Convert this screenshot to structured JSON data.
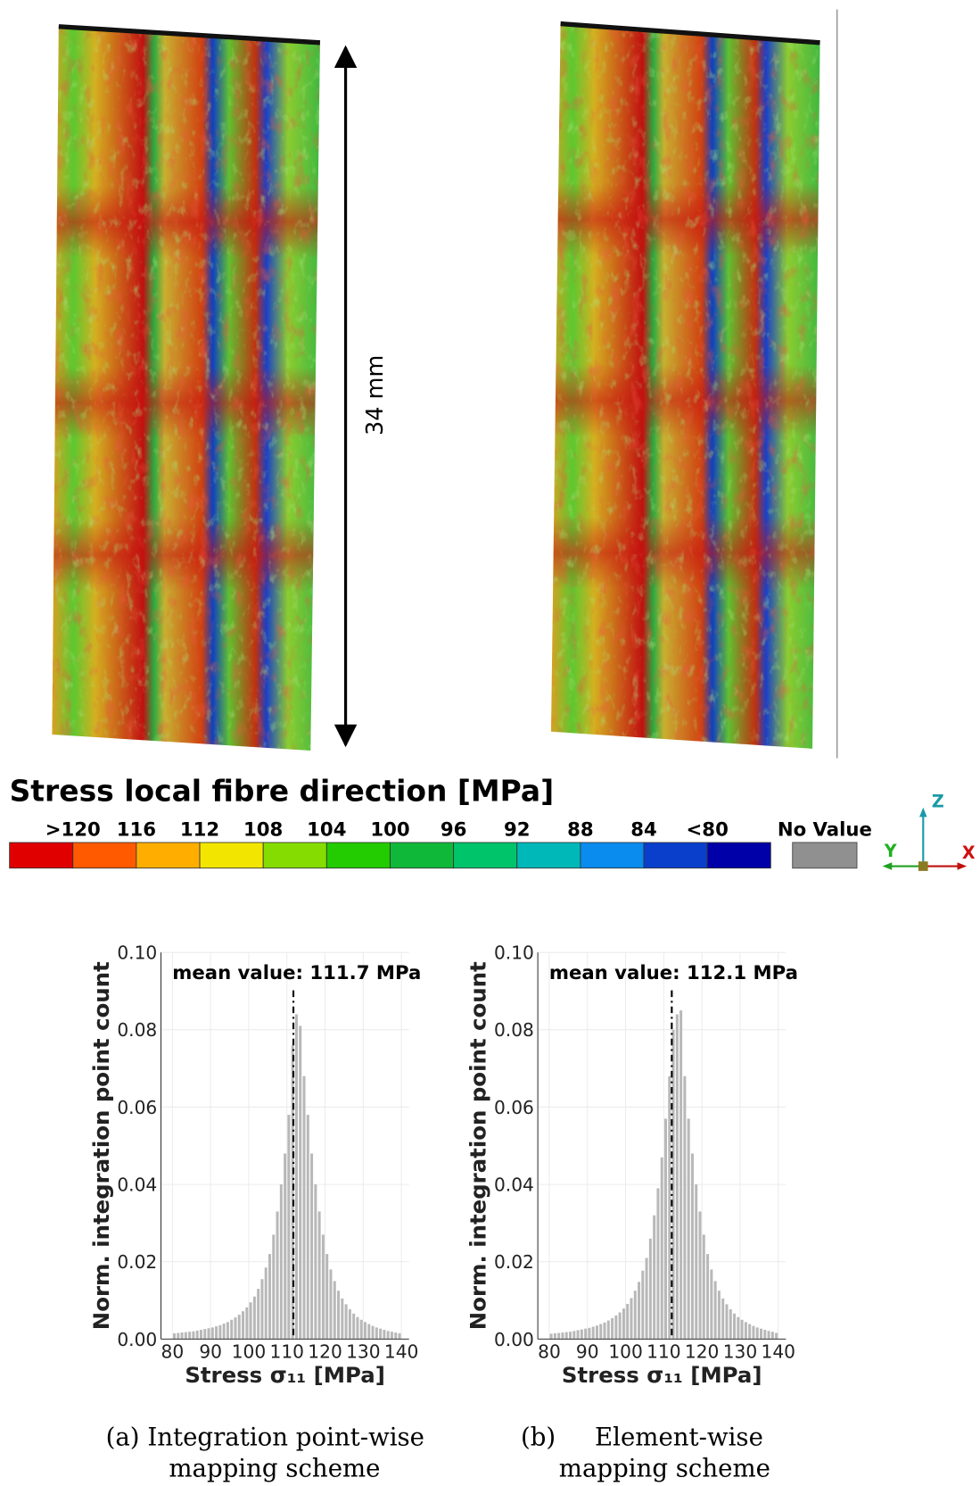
{
  "field_plot": {
    "dimension_label": "34 mm",
    "legend": {
      "title": "Stress local fibre direction [MPa]",
      "labels": [
        ">120",
        "116",
        "112",
        "108",
        "104",
        "100",
        "96",
        "92",
        "88",
        "84",
        "<80"
      ],
      "colors": [
        "#e00000",
        "#ff5a00",
        "#ffae00",
        "#f2e600",
        "#84dc00",
        "#22cc00",
        "#10b83a",
        "#00c46a",
        "#00b8b8",
        "#0a8bee",
        "#0a3fcc",
        "#0000a8"
      ],
      "no_value": {
        "label": "No Value",
        "color": "#909090"
      }
    },
    "axes": {
      "z": "Z",
      "y": "Y",
      "x": "X"
    }
  },
  "captions": [
    [
      "(a) Integration point-wise",
      "mapping scheme"
    ],
    [
      "(b)     Element-wise",
      "mapping scheme"
    ]
  ],
  "chart_data": [
    {
      "type": "histogram",
      "xlabel": "Stress σ₁₁ [MPa]",
      "ylabel": "Norm. integration point count",
      "color": "#b8b8b8",
      "bins": [
        80,
        81,
        82,
        83,
        84,
        85,
        86,
        87,
        88,
        89,
        90,
        91,
        92,
        93,
        94,
        95,
        96,
        97,
        98,
        99,
        100,
        101,
        102,
        103,
        104,
        105,
        106,
        107,
        108,
        109,
        110,
        111,
        112,
        113,
        114,
        115,
        116,
        117,
        118,
        119,
        120,
        121,
        122,
        123,
        124,
        125,
        126,
        127,
        128,
        129,
        130,
        131,
        132,
        133,
        134,
        135,
        136,
        137,
        138,
        139,
        140
      ],
      "values": [
        0.0015,
        0.0016,
        0.0017,
        0.0018,
        0.0019,
        0.002,
        0.0022,
        0.0024,
        0.0026,
        0.0028,
        0.003,
        0.0033,
        0.0036,
        0.004,
        0.0044,
        0.005,
        0.0056,
        0.0063,
        0.0072,
        0.0082,
        0.0095,
        0.011,
        0.013,
        0.0155,
        0.0185,
        0.022,
        0.027,
        0.033,
        0.04,
        0.048,
        0.058,
        0.076,
        0.084,
        0.081,
        0.068,
        0.058,
        0.048,
        0.04,
        0.033,
        0.027,
        0.022,
        0.018,
        0.015,
        0.0125,
        0.0105,
        0.009,
        0.0077,
        0.0066,
        0.0057,
        0.005,
        0.0044,
        0.0039,
        0.0034,
        0.003,
        0.0027,
        0.0024,
        0.0021,
        0.0019,
        0.0017,
        0.0015
      ],
      "mean_line": {
        "value": 111.7,
        "label": "mean value: 111.7 MPa"
      },
      "xlim": [
        77,
        142
      ],
      "ylim": [
        0,
        0.1
      ],
      "xticks": [
        80,
        90,
        100,
        110,
        120,
        130,
        140
      ],
      "yticks": [
        {
          "value": 0,
          "label": "0.00"
        },
        {
          "value": 0.02,
          "label": "0.02"
        },
        {
          "value": 0.04,
          "label": "0.04"
        },
        {
          "value": 0.06,
          "label": "0.06"
        },
        {
          "value": 0.08,
          "label": "0.08"
        },
        {
          "value": 0.1,
          "label": "0.10"
        }
      ],
      "grid": true
    },
    {
      "type": "histogram",
      "xlabel": "Stress σ₁₁ [MPa]",
      "ylabel": "Norm. integration point count",
      "color": "#b8b8b8",
      "bins": [
        80,
        81,
        82,
        83,
        84,
        85,
        86,
        87,
        88,
        89,
        90,
        91,
        92,
        93,
        94,
        95,
        96,
        97,
        98,
        99,
        100,
        101,
        102,
        103,
        104,
        105,
        106,
        107,
        108,
        109,
        110,
        111,
        112,
        113,
        114,
        115,
        116,
        117,
        118,
        119,
        120,
        121,
        122,
        123,
        124,
        125,
        126,
        127,
        128,
        129,
        130,
        131,
        132,
        133,
        134,
        135,
        136,
        137,
        138,
        139,
        140
      ],
      "values": [
        0.0014,
        0.0015,
        0.0016,
        0.0017,
        0.0018,
        0.0019,
        0.0021,
        0.0023,
        0.0025,
        0.0027,
        0.0029,
        0.0032,
        0.0035,
        0.0039,
        0.0043,
        0.0048,
        0.0054,
        0.0061,
        0.0069,
        0.0079,
        0.0091,
        0.0106,
        0.0125,
        0.0148,
        0.0177,
        0.021,
        0.026,
        0.032,
        0.039,
        0.047,
        0.057,
        0.068,
        0.08,
        0.084,
        0.085,
        0.068,
        0.057,
        0.048,
        0.04,
        0.033,
        0.027,
        0.022,
        0.018,
        0.015,
        0.0125,
        0.0105,
        0.009,
        0.0077,
        0.0066,
        0.0057,
        0.005,
        0.0044,
        0.0039,
        0.0034,
        0.003,
        0.0027,
        0.0024,
        0.0021,
        0.0019,
        0.0016
      ],
      "mean_line": {
        "value": 112.1,
        "label": "mean value: 112.1 MPa"
      },
      "xlim": [
        77,
        142
      ],
      "ylim": [
        0,
        0.1
      ],
      "xticks": [
        80,
        90,
        100,
        110,
        120,
        130,
        140
      ],
      "yticks": [
        {
          "value": 0,
          "label": "0.00"
        },
        {
          "value": 0.02,
          "label": "0.02"
        },
        {
          "value": 0.04,
          "label": "0.04"
        },
        {
          "value": 0.06,
          "label": "0.06"
        },
        {
          "value": 0.08,
          "label": "0.08"
        },
        {
          "value": 0.1,
          "label": "0.10"
        }
      ],
      "grid": true
    }
  ]
}
